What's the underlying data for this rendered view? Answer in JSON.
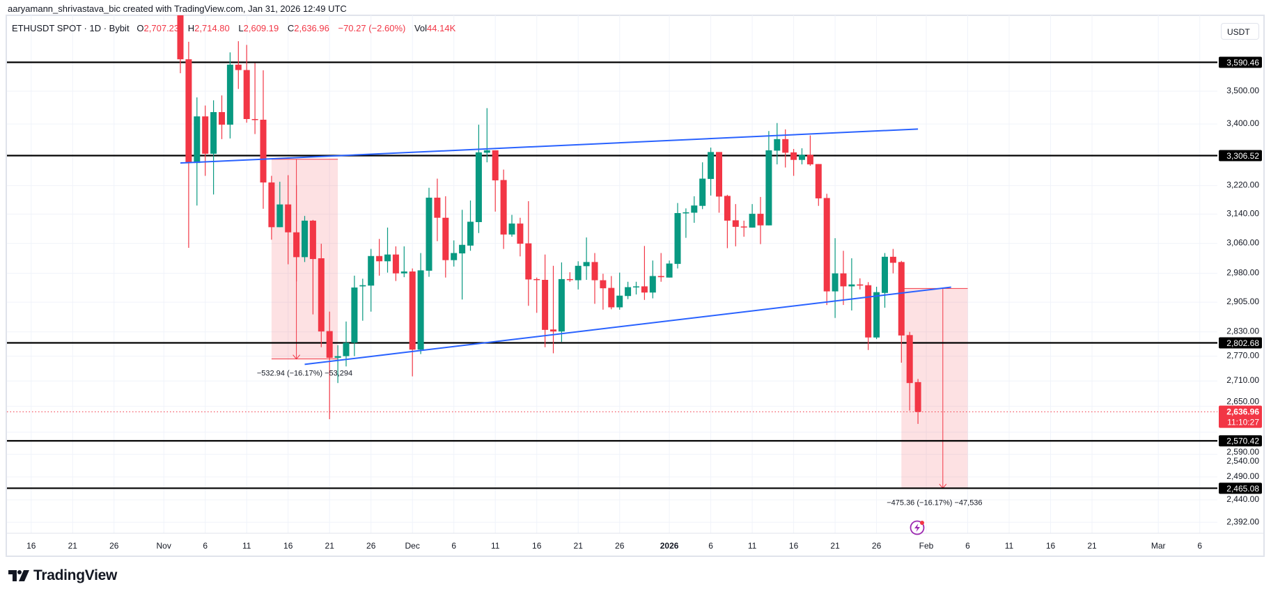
{
  "header": {
    "attribution": "aaryamann_shrivastava_bic created with TradingView.com, Jan 31, 2026 12:49 UTC",
    "symbol": "ETHUSDT SPOT · 1D · Bybit",
    "o_label": "O",
    "o_value": "2,707.23",
    "h_label": "H",
    "h_value": "2,714.80",
    "l_label": "L",
    "l_value": "2,609.19",
    "c_label": "C",
    "c_value": "2,636.96",
    "change": "−70.27 (−2.60%)",
    "vol_label": "Vol",
    "vol_value": "44.14K"
  },
  "currency_button": "USDT",
  "footer": {
    "brand": "TradingView"
  },
  "colors": {
    "up": "#089981",
    "down": "#F23645",
    "trendline": "#2962FF",
    "level_line": "#000000",
    "measure_fill": "#F23645",
    "alert_icon": "#9C27B0"
  },
  "icons": {
    "alert": "lightning-icon",
    "logo": "tradingview-logo-icon"
  },
  "chart_data": {
    "type": "candlestick",
    "title": "",
    "scale": "log",
    "grid": true,
    "y_axis_unit": "USDT",
    "columns": [
      "date",
      "open",
      "high",
      "low",
      "close"
    ],
    "candles": [
      [
        "2025-11-03",
        3780,
        3800,
        3556,
        3600
      ],
      [
        "2025-11-04",
        3600,
        3656,
        3048,
        3287
      ],
      [
        "2025-11-05",
        3285,
        3481,
        3164,
        3423
      ],
      [
        "2025-11-06",
        3423,
        3456,
        3248,
        3312
      ],
      [
        "2025-11-07",
        3312,
        3472,
        3195,
        3436
      ],
      [
        "2025-11-08",
        3436,
        3487,
        3355,
        3398
      ],
      [
        "2025-11-09",
        3398,
        3622,
        3357,
        3583
      ],
      [
        "2025-11-10",
        3583,
        3658,
        3507,
        3566
      ],
      [
        "2025-11-11",
        3566,
        3646,
        3404,
        3415
      ],
      [
        "2025-11-12",
        3415,
        3588,
        3370,
        3413
      ],
      [
        "2025-11-13",
        3413,
        3565,
        3155,
        3229
      ],
      [
        "2025-11-14",
        3229,
        3248,
        3070,
        3104
      ],
      [
        "2025-11-15",
        3104,
        3231,
        3104,
        3167
      ],
      [
        "2025-11-16",
        3167,
        3250,
        3004,
        3090
      ],
      [
        "2025-11-17",
        3090,
        3221,
        2959,
        3023
      ],
      [
        "2025-11-18",
        3023,
        3135,
        3010,
        3122
      ],
      [
        "2025-11-19",
        3122,
        3124,
        2874,
        3018
      ],
      [
        "2025-11-20",
        3020,
        3059,
        2792,
        2831
      ],
      [
        "2025-11-21",
        2832,
        2881,
        2620,
        2766
      ],
      [
        "2025-11-22",
        2766,
        2797,
        2705,
        2770
      ],
      [
        "2025-11-23",
        2770,
        2856,
        2745,
        2803
      ],
      [
        "2025-11-24",
        2803,
        2974,
        2770,
        2943
      ],
      [
        "2025-11-25",
        2946,
        2966,
        2858,
        2949
      ],
      [
        "2025-11-26",
        2948,
        3045,
        2881,
        3026
      ],
      [
        "2025-11-27",
        3026,
        3072,
        2974,
        3012
      ],
      [
        "2025-11-28",
        3012,
        3103,
        2982,
        3030
      ],
      [
        "2025-11-29",
        3030,
        3052,
        2960,
        2980
      ],
      [
        "2025-11-30",
        2980,
        3052,
        2970,
        2985
      ],
      [
        "2025-12-01",
        2985,
        2993,
        2721,
        2786
      ],
      [
        "2025-12-02",
        2786,
        3034,
        2775,
        2988
      ],
      [
        "2025-12-03",
        2987,
        3214,
        2971,
        3186
      ],
      [
        "2025-12-04",
        3186,
        3240,
        3066,
        3130
      ],
      [
        "2025-12-05",
        3130,
        3190,
        2969,
        3015
      ],
      [
        "2025-12-06",
        3015,
        3068,
        2998,
        3034
      ],
      [
        "2025-12-07",
        3033,
        3152,
        2912,
        3056
      ],
      [
        "2025-12-08",
        3054,
        3178,
        3040,
        3119
      ],
      [
        "2025-12-09",
        3118,
        3398,
        3088,
        3316
      ],
      [
        "2025-12-10",
        3315,
        3448,
        3287,
        3322
      ],
      [
        "2025-12-11",
        3322,
        3322,
        3147,
        3235
      ],
      [
        "2025-12-12",
        3236,
        3266,
        3045,
        3084
      ],
      [
        "2025-12-13",
        3084,
        3138,
        3078,
        3114
      ],
      [
        "2025-12-14",
        3114,
        3130,
        3025,
        3059
      ],
      [
        "2025-12-15",
        3060,
        3176,
        2896,
        2964
      ],
      [
        "2025-12-16",
        2965,
        2969,
        2878,
        2963
      ],
      [
        "2025-12-17",
        2963,
        3030,
        2792,
        2835
      ],
      [
        "2025-12-18",
        2836,
        3000,
        2777,
        2831
      ],
      [
        "2025-12-19",
        2831,
        3009,
        2805,
        2965
      ],
      [
        "2025-12-20",
        2965,
        2983,
        2958,
        2963
      ],
      [
        "2025-12-21",
        2962,
        3012,
        2938,
        3000
      ],
      [
        "2025-12-22",
        2999,
        3076,
        2963,
        3010
      ],
      [
        "2025-12-23",
        3010,
        3034,
        2901,
        2962
      ],
      [
        "2025-12-24",
        2962,
        2979,
        2886,
        2941
      ],
      [
        "2025-12-25",
        2942,
        2973,
        2887,
        2892
      ],
      [
        "2025-12-26",
        2892,
        2982,
        2886,
        2922
      ],
      [
        "2025-12-27",
        2921,
        2958,
        2913,
        2944
      ],
      [
        "2025-12-28",
        2944,
        2958,
        2925,
        2946
      ],
      [
        "2025-12-29",
        2946,
        3053,
        2911,
        2930
      ],
      [
        "2025-12-30",
        2930,
        3014,
        2915,
        2973
      ],
      [
        "2025-12-31",
        2973,
        3034,
        2958,
        2970
      ],
      [
        "2026-01-01",
        2969,
        3014,
        2969,
        3006
      ],
      [
        "2026-01-02",
        3005,
        3171,
        2993,
        3143
      ],
      [
        "2026-01-03",
        3143,
        3156,
        3075,
        3145
      ],
      [
        "2026-01-04",
        3144,
        3190,
        3116,
        3164
      ],
      [
        "2026-01-05",
        3163,
        3287,
        3154,
        3240
      ],
      [
        "2026-01-06",
        3239,
        3330,
        3192,
        3317
      ],
      [
        "2026-01-07",
        3317,
        3317,
        3144,
        3189
      ],
      [
        "2026-01-08",
        3191,
        3194,
        3047,
        3122
      ],
      [
        "2026-01-09",
        3123,
        3168,
        3052,
        3105
      ],
      [
        "2026-01-10",
        3106,
        3122,
        3078,
        3105
      ],
      [
        "2026-01-11",
        3103,
        3168,
        3103,
        3141
      ],
      [
        "2026-01-12",
        3141,
        3188,
        3058,
        3109
      ],
      [
        "2026-01-13",
        3109,
        3379,
        3109,
        3322
      ],
      [
        "2026-01-14",
        3321,
        3403,
        3281,
        3355
      ],
      [
        "2026-01-15",
        3355,
        3384,
        3272,
        3315
      ],
      [
        "2026-01-16",
        3316,
        3326,
        3248,
        3294
      ],
      [
        "2026-01-17",
        3294,
        3328,
        3281,
        3309
      ],
      [
        "2026-01-18",
        3309,
        3366,
        3277,
        3281
      ],
      [
        "2026-01-19",
        3282,
        3282,
        3163,
        3184
      ],
      [
        "2026-01-20",
        3185,
        3197,
        2898,
        2933
      ],
      [
        "2026-01-21",
        2933,
        3074,
        2865,
        2980
      ],
      [
        "2026-01-22",
        2980,
        3040,
        2898,
        2946
      ],
      [
        "2026-01-23",
        2946,
        3020,
        2884,
        2951
      ],
      [
        "2026-01-24",
        2951,
        2967,
        2938,
        2948
      ],
      [
        "2026-01-25",
        2949,
        2957,
        2785,
        2816
      ],
      [
        "2026-01-26",
        2816,
        2945,
        2812,
        2931
      ],
      [
        "2026-01-27",
        2929,
        3034,
        2891,
        3024
      ],
      [
        "2026-01-28",
        3024,
        3045,
        2980,
        3008
      ],
      [
        "2026-01-29",
        3010,
        3013,
        2754,
        2821
      ],
      [
        "2026-01-30",
        2822,
        2830,
        2640,
        2705
      ],
      [
        "2026-01-31",
        2707.23,
        2714.8,
        2609.19,
        2636.96
      ]
    ],
    "price_ticks": [
      {
        "value": 3500,
        "label": "3,500.00"
      },
      {
        "value": 3400,
        "label": "3,400.00"
      },
      {
        "value": 3220,
        "label": "3,220.00"
      },
      {
        "value": 3140,
        "label": "3,140.00"
      },
      {
        "value": 3060,
        "label": "3,060.00"
      },
      {
        "value": 2980,
        "label": "2,980.00"
      },
      {
        "value": 2905,
        "label": "2,905.00"
      },
      {
        "value": 2830,
        "label": "2,830.00"
      },
      {
        "value": 2770,
        "label": "2,770.00"
      },
      {
        "value": 2710,
        "label": "2,710.00"
      },
      {
        "value": 2650,
        "label": "2,650.00"
      },
      {
        "value": 2590,
        "label": "2,590.00"
      },
      {
        "value": 2540,
        "label": "2,540.00"
      },
      {
        "value": 2490,
        "label": "2,490.00"
      },
      {
        "value": 2440,
        "label": "2,440.00"
      },
      {
        "value": 2392,
        "label": "2,392.00"
      }
    ],
    "time_ticks": [
      {
        "date": "2025-10-16",
        "label": "16"
      },
      {
        "date": "2025-10-21",
        "label": "21"
      },
      {
        "date": "2025-10-26",
        "label": "26"
      },
      {
        "date": "2025-11-01",
        "label": "Nov"
      },
      {
        "date": "2025-11-06",
        "label": "6"
      },
      {
        "date": "2025-11-11",
        "label": "11"
      },
      {
        "date": "2025-11-16",
        "label": "16"
      },
      {
        "date": "2025-11-21",
        "label": "21"
      },
      {
        "date": "2025-11-26",
        "label": "26"
      },
      {
        "date": "2025-12-01",
        "label": "Dec"
      },
      {
        "date": "2025-12-06",
        "label": "6"
      },
      {
        "date": "2025-12-11",
        "label": "11"
      },
      {
        "date": "2025-12-16",
        "label": "16"
      },
      {
        "date": "2025-12-21",
        "label": "21"
      },
      {
        "date": "2025-12-26",
        "label": "26"
      },
      {
        "date": "2026-01-01",
        "label": "2026",
        "bold": true
      },
      {
        "date": "2026-01-06",
        "label": "6"
      },
      {
        "date": "2026-01-11",
        "label": "11"
      },
      {
        "date": "2026-01-16",
        "label": "16"
      },
      {
        "date": "2026-01-21",
        "label": "21"
      },
      {
        "date": "2026-01-26",
        "label": "26"
      },
      {
        "date": "2026-02-01",
        "label": "Feb"
      },
      {
        "date": "2026-02-06",
        "label": "6"
      },
      {
        "date": "2026-02-11",
        "label": "11"
      },
      {
        "date": "2026-02-16",
        "label": "16"
      },
      {
        "date": "2026-02-21",
        "label": "21"
      },
      {
        "date": "2026-03-01",
        "label": "Mar"
      },
      {
        "date": "2026-03-06",
        "label": "6"
      }
    ],
    "horizontal_levels": [
      {
        "price": 3590.46,
        "label": "3,590.46"
      },
      {
        "price": 3306.52,
        "label": "3,306.52"
      },
      {
        "price": 2802.68,
        "label": "2,802.68"
      },
      {
        "price": 2570.42,
        "label": "2,570.42"
      },
      {
        "price": 2465.08,
        "label": "2,465.08"
      }
    ],
    "last_price": {
      "price": 2636.96,
      "label": "2,636.96",
      "countdown": "11:10:27"
    },
    "trendlines": [
      {
        "from": {
          "date": "2025-11-03",
          "price": 3285
        },
        "to": {
          "date": "2026-01-31",
          "price": 3385
        }
      },
      {
        "from": {
          "date": "2025-11-18",
          "price": 2750
        },
        "to": {
          "date": "2026-02-04",
          "price": 2944
        }
      }
    ],
    "measurements": [
      {
        "start": "2025-11-14",
        "end": "2025-11-22",
        "arrow_date": "2025-11-17",
        "top": 3296.0,
        "bottom": 2763.06,
        "label": "−532.94 (−16.17%) −53,294"
      },
      {
        "start": "2026-01-29",
        "end": "2026-02-06",
        "arrow_date": "2026-02-03",
        "top": 2940.44,
        "bottom": 2465.08,
        "label": "−475.36 (−16.17%) −47,536"
      }
    ]
  }
}
